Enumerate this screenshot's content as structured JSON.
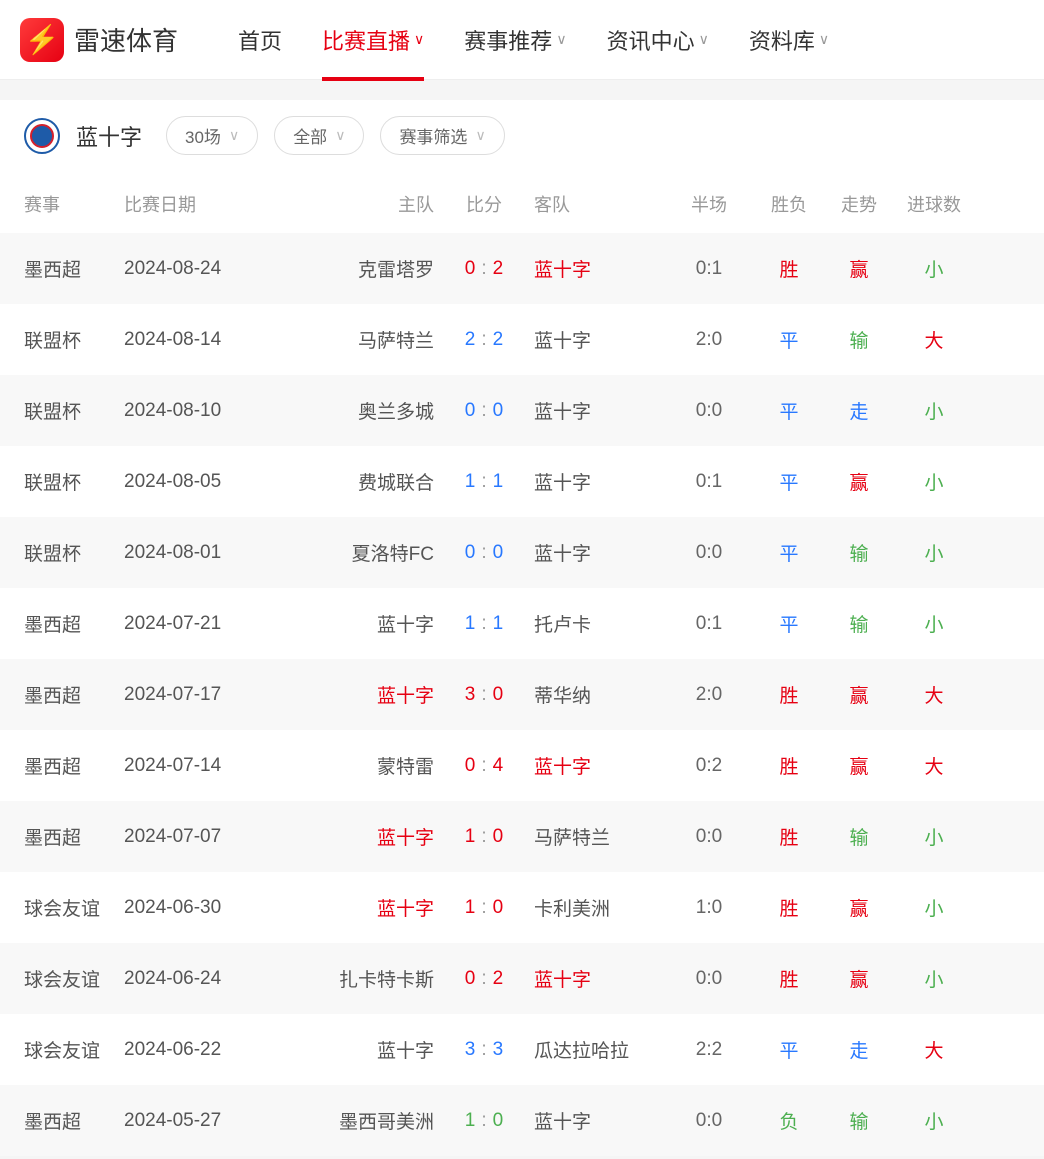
{
  "site": {
    "name": "雷速体育"
  },
  "nav": {
    "items": [
      {
        "label": "首页",
        "dropdown": false,
        "active": false
      },
      {
        "label": "比赛直播",
        "dropdown": true,
        "active": true
      },
      {
        "label": "赛事推荐",
        "dropdown": true,
        "active": false
      },
      {
        "label": "资讯中心",
        "dropdown": true,
        "active": false
      },
      {
        "label": "资料库",
        "dropdown": true,
        "active": false
      }
    ]
  },
  "team": {
    "name": "蓝十字"
  },
  "filters": {
    "count": "30场",
    "scope": "全部",
    "competition": "赛事筛选"
  },
  "columns": {
    "league": "赛事",
    "date": "比赛日期",
    "home": "主队",
    "score": "比分",
    "away": "客队",
    "half": "半场",
    "result": "胜负",
    "trend": "走势",
    "goals": "进球数"
  },
  "colors": {
    "red": "#e60012",
    "blue": "#2878ff",
    "green": "#4caf50",
    "text": "#555555",
    "muted": "#999999"
  },
  "rows": [
    {
      "league": "墨西超",
      "date": "2024-08-24",
      "home": "克雷塔罗",
      "homeHl": false,
      "hs": "0",
      "as": "2",
      "scoreColor": "red",
      "away": "蓝十字",
      "awayHl": true,
      "half": "0:1",
      "result": "胜",
      "resultColor": "red",
      "trend": "赢",
      "trendColor": "red",
      "goals": "小",
      "goalsColor": "green"
    },
    {
      "league": "联盟杯",
      "date": "2024-08-14",
      "home": "马萨特兰",
      "homeHl": false,
      "hs": "2",
      "as": "2",
      "scoreColor": "blue",
      "away": "蓝十字",
      "awayHl": false,
      "half": "2:0",
      "result": "平",
      "resultColor": "blue",
      "trend": "输",
      "trendColor": "green",
      "goals": "大",
      "goalsColor": "red"
    },
    {
      "league": "联盟杯",
      "date": "2024-08-10",
      "home": "奥兰多城",
      "homeHl": false,
      "hs": "0",
      "as": "0",
      "scoreColor": "blue",
      "away": "蓝十字",
      "awayHl": false,
      "half": "0:0",
      "result": "平",
      "resultColor": "blue",
      "trend": "走",
      "trendColor": "blue",
      "goals": "小",
      "goalsColor": "green"
    },
    {
      "league": "联盟杯",
      "date": "2024-08-05",
      "home": "费城联合",
      "homeHl": false,
      "hs": "1",
      "as": "1",
      "scoreColor": "blue",
      "away": "蓝十字",
      "awayHl": false,
      "half": "0:1",
      "result": "平",
      "resultColor": "blue",
      "trend": "赢",
      "trendColor": "red",
      "goals": "小",
      "goalsColor": "green"
    },
    {
      "league": "联盟杯",
      "date": "2024-08-01",
      "home": "夏洛特FC",
      "homeHl": false,
      "hs": "0",
      "as": "0",
      "scoreColor": "blue",
      "away": "蓝十字",
      "awayHl": false,
      "half": "0:0",
      "result": "平",
      "resultColor": "blue",
      "trend": "输",
      "trendColor": "green",
      "goals": "小",
      "goalsColor": "green"
    },
    {
      "league": "墨西超",
      "date": "2024-07-21",
      "home": "蓝十字",
      "homeHl": false,
      "hs": "1",
      "as": "1",
      "scoreColor": "blue",
      "away": "托卢卡",
      "awayHl": false,
      "half": "0:1",
      "result": "平",
      "resultColor": "blue",
      "trend": "输",
      "trendColor": "green",
      "goals": "小",
      "goalsColor": "green"
    },
    {
      "league": "墨西超",
      "date": "2024-07-17",
      "home": "蓝十字",
      "homeHl": true,
      "hs": "3",
      "as": "0",
      "scoreColor": "red",
      "away": "蒂华纳",
      "awayHl": false,
      "half": "2:0",
      "result": "胜",
      "resultColor": "red",
      "trend": "赢",
      "trendColor": "red",
      "goals": "大",
      "goalsColor": "red"
    },
    {
      "league": "墨西超",
      "date": "2024-07-14",
      "home": "蒙特雷",
      "homeHl": false,
      "hs": "0",
      "as": "4",
      "scoreColor": "red",
      "away": "蓝十字",
      "awayHl": true,
      "half": "0:2",
      "result": "胜",
      "resultColor": "red",
      "trend": "赢",
      "trendColor": "red",
      "goals": "大",
      "goalsColor": "red"
    },
    {
      "league": "墨西超",
      "date": "2024-07-07",
      "home": "蓝十字",
      "homeHl": true,
      "hs": "1",
      "as": "0",
      "scoreColor": "red",
      "away": "马萨特兰",
      "awayHl": false,
      "half": "0:0",
      "result": "胜",
      "resultColor": "red",
      "trend": "输",
      "trendColor": "green",
      "goals": "小",
      "goalsColor": "green"
    },
    {
      "league": "球会友谊",
      "date": "2024-06-30",
      "home": "蓝十字",
      "homeHl": true,
      "hs": "1",
      "as": "0",
      "scoreColor": "red",
      "away": "卡利美洲",
      "awayHl": false,
      "half": "1:0",
      "result": "胜",
      "resultColor": "red",
      "trend": "赢",
      "trendColor": "red",
      "goals": "小",
      "goalsColor": "green"
    },
    {
      "league": "球会友谊",
      "date": "2024-06-24",
      "home": "扎卡特卡斯",
      "homeHl": false,
      "hs": "0",
      "as": "2",
      "scoreColor": "red",
      "away": "蓝十字",
      "awayHl": true,
      "half": "0:0",
      "result": "胜",
      "resultColor": "red",
      "trend": "赢",
      "trendColor": "red",
      "goals": "小",
      "goalsColor": "green"
    },
    {
      "league": "球会友谊",
      "date": "2024-06-22",
      "home": "蓝十字",
      "homeHl": false,
      "hs": "3",
      "as": "3",
      "scoreColor": "blue",
      "away": "瓜达拉哈拉",
      "awayHl": false,
      "half": "2:2",
      "result": "平",
      "resultColor": "blue",
      "trend": "走",
      "trendColor": "blue",
      "goals": "大",
      "goalsColor": "red"
    },
    {
      "league": "墨西超",
      "date": "2024-05-27",
      "home": "墨西哥美洲",
      "homeHl": false,
      "hs": "1",
      "as": "0",
      "scoreColor": "green",
      "away": "蓝十字",
      "awayHl": false,
      "half": "0:0",
      "result": "负",
      "resultColor": "green",
      "trend": "输",
      "trendColor": "green",
      "goals": "小",
      "goalsColor": "green"
    }
  ]
}
